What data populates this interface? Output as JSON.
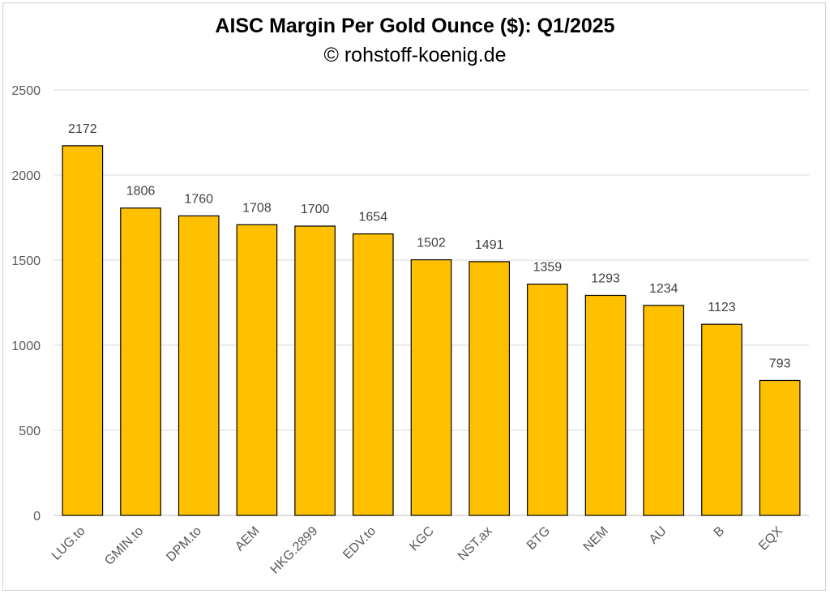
{
  "chart_data": {
    "type": "bar",
    "title": "AISC Margin Per Gold Ounce ($): Q1/2025",
    "subtitle": "© rohstoff-koenig.de",
    "categories": [
      "LUG.to",
      "GMIN.to",
      "DPM.to",
      "AEM",
      "HKG.2899",
      "EDV.to",
      "KGC",
      "NST.ax",
      "BTG",
      "NEM",
      "AU",
      "B",
      "EQX"
    ],
    "values": [
      2172,
      1806,
      1760,
      1708,
      1700,
      1654,
      1502,
      1491,
      1359,
      1293,
      1234,
      1123,
      793
    ],
    "ylim": [
      0,
      2500
    ],
    "yticks": [
      0,
      500,
      1000,
      1500,
      2000,
      2500
    ],
    "grid": true,
    "legend": "none",
    "bar_color": "#FFC000",
    "bar_border": "#000000",
    "grid_color": "#d9d9d9"
  }
}
